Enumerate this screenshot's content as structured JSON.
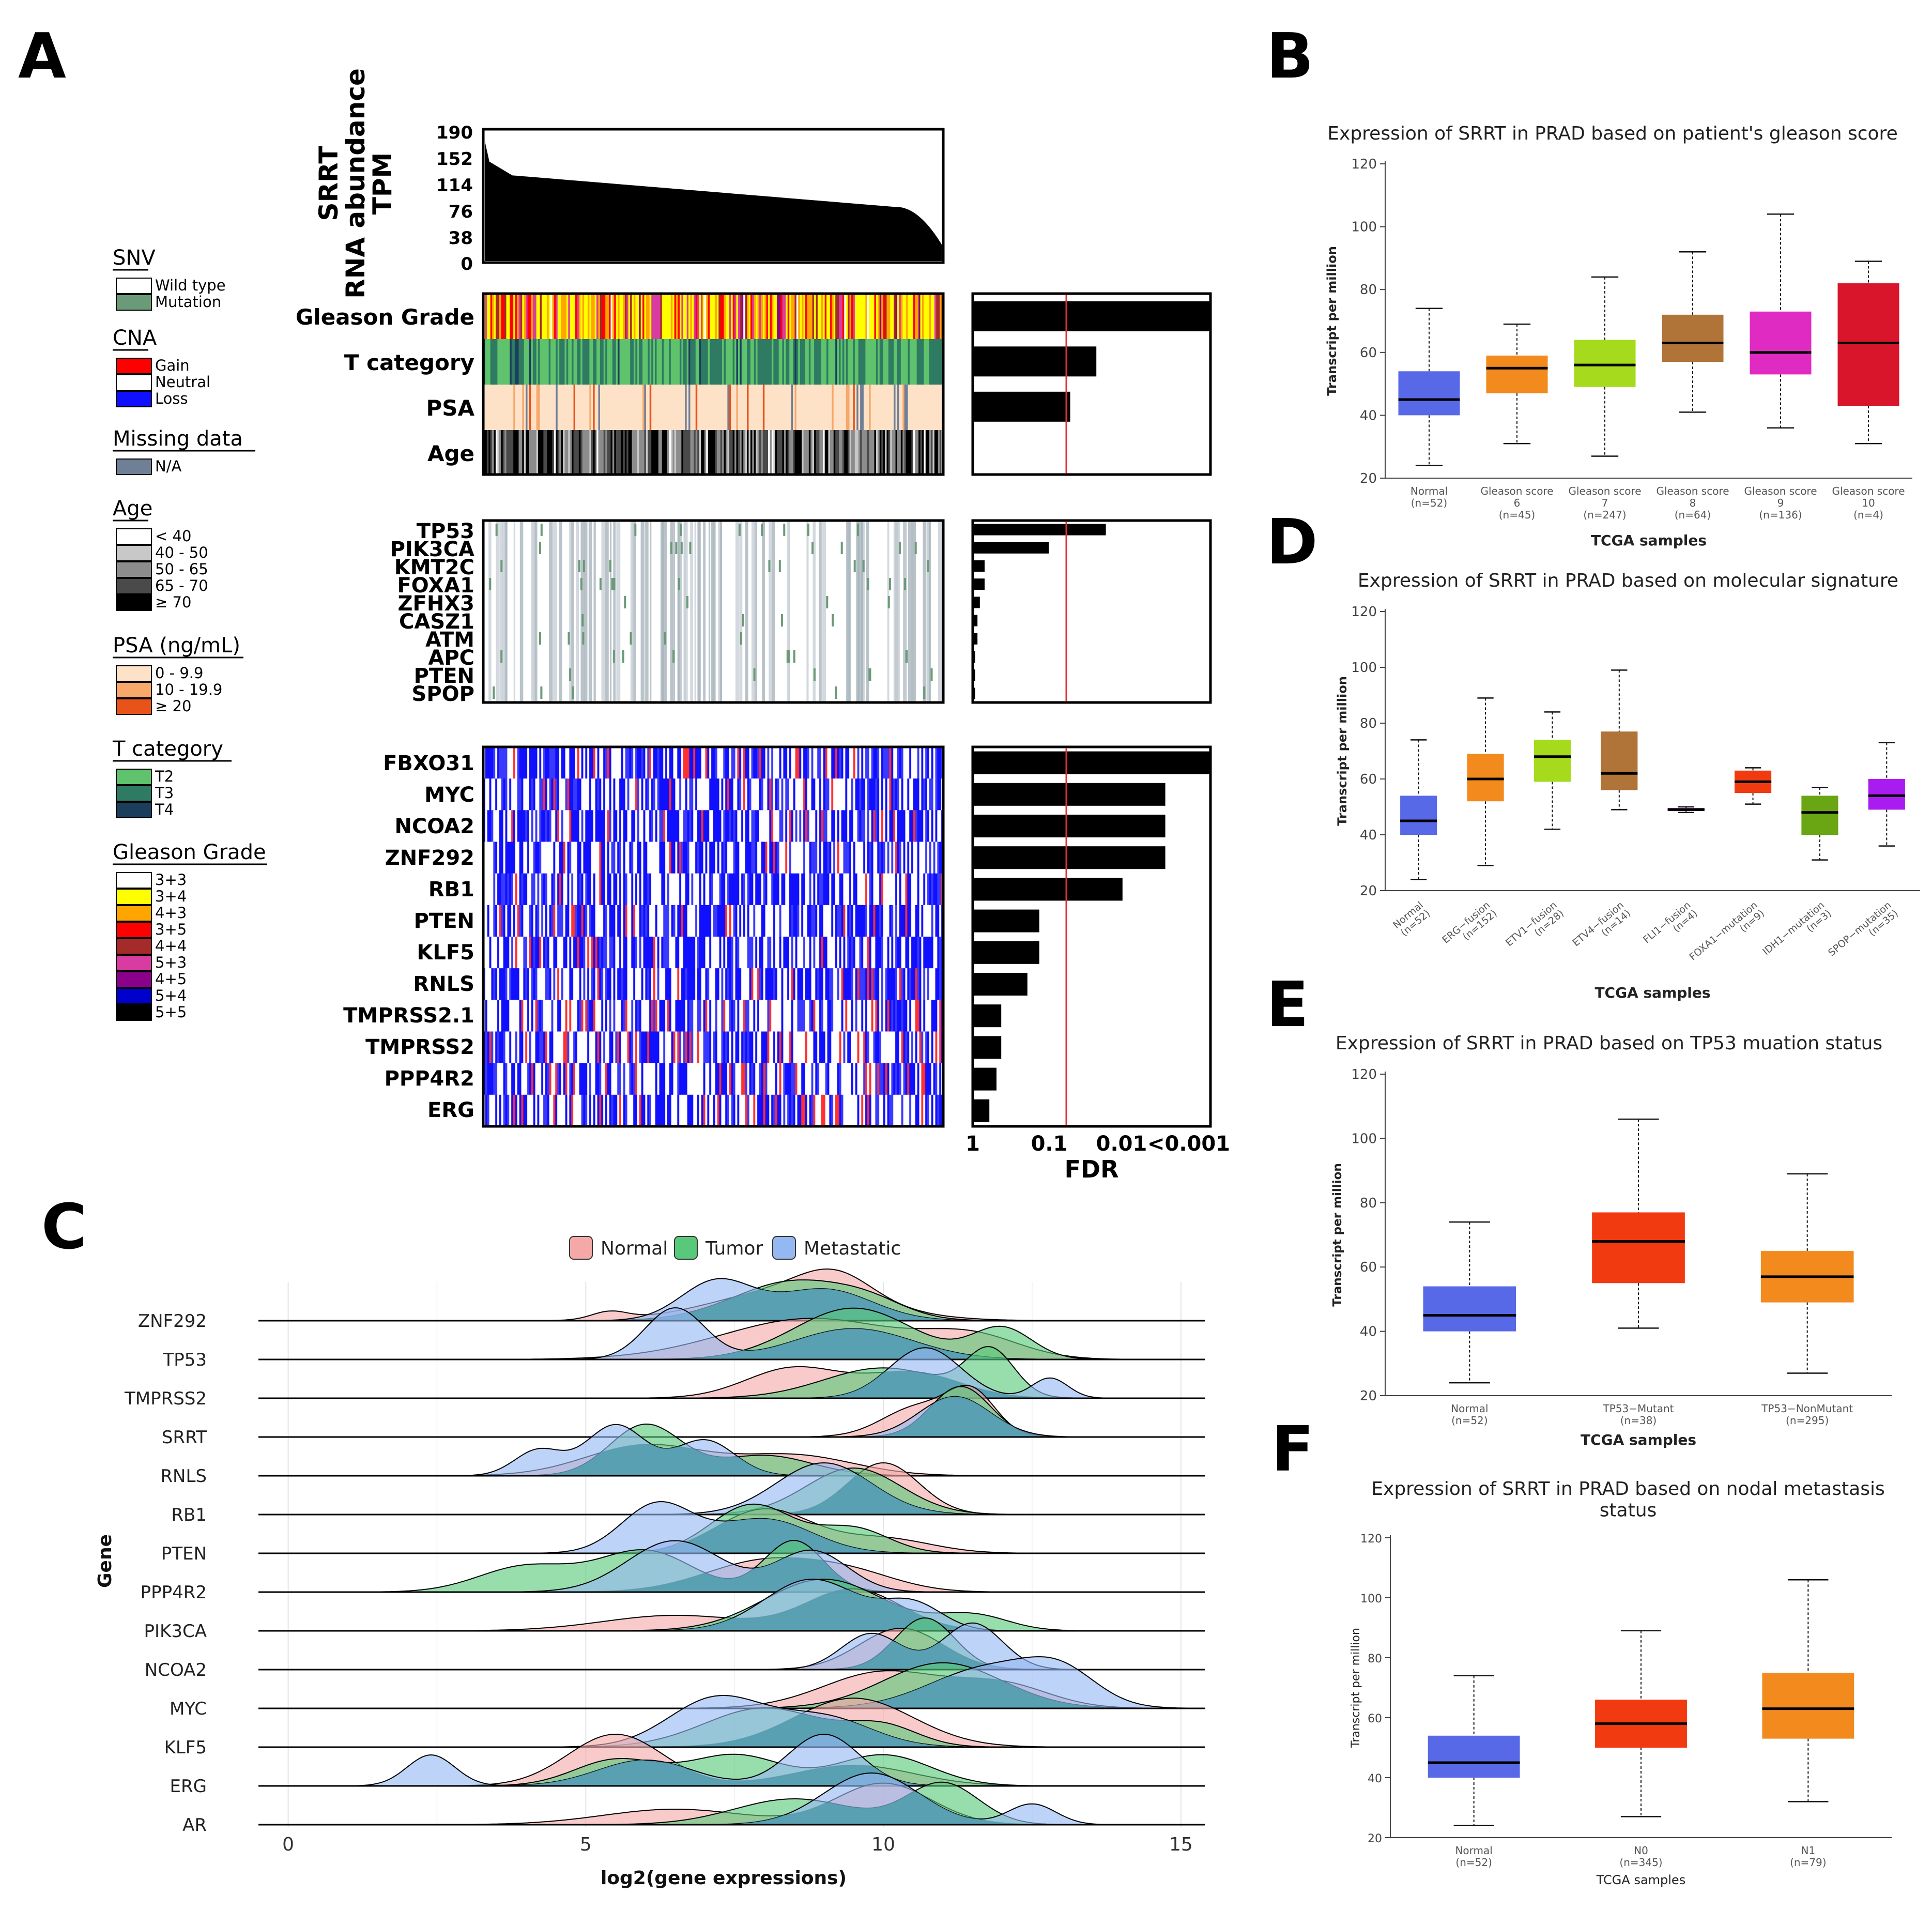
{
  "panel_letters": {
    "A": "A",
    "B": "B",
    "C": "C",
    "D": "D",
    "E": "E",
    "F": "F"
  },
  "colors": {
    "normal": "#5869e8",
    "orange": "#f28a1e",
    "lime": "#a5db1c",
    "brown": "#b07338",
    "magenta": "#e02bc2",
    "crimson": "#d8152b",
    "redorange": "#f23a10",
    "orchid": "#7d1f8f",
    "green": "#6aa514",
    "violet": "#a81cf0",
    "ridge_normal": "#f4a9a8",
    "ridge_tumor": "#58c97a",
    "ridge_meta": "#95b8f2",
    "ridge_overlap": "#4f9aae"
  },
  "panelA": {
    "ylabel_lines": [
      "SRRT",
      "RNA abundance",
      "TPM"
    ],
    "yticks": [
      "190",
      "152",
      "114",
      "76",
      "38",
      "0"
    ],
    "clinical_rows": [
      "Gleason Grade",
      "T category",
      "PSA",
      "Age"
    ],
    "clinical_fdr_bars": [
      1.0,
      0.52,
      0.41,
      0.0
    ],
    "mutation_rows": [
      "TP53",
      "PIK3CA",
      "KMT2C",
      "FOXA1",
      "ZFHX3",
      "CASZ1",
      "ATM",
      "APC",
      "PTEN",
      "SPOP"
    ],
    "mutation_fdr_bars": [
      0.56,
      0.32,
      0.05,
      0.05,
      0.03,
      0.02,
      0.02,
      0.01,
      0.01,
      0.01
    ],
    "cna_rows": [
      "FBXO31",
      "MYC",
      "NCOA2",
      "ZNF292",
      "RB1",
      "PTEN",
      "KLF5",
      "RNLS",
      "TMPRSS2.1",
      "TMPRSS2",
      "PPP4R2",
      "ERG"
    ],
    "cna_fdr_bars": [
      1.0,
      0.81,
      0.81,
      0.81,
      0.63,
      0.28,
      0.28,
      0.23,
      0.12,
      0.12,
      0.1,
      0.07
    ],
    "fdr_ticks": [
      "1",
      "0.1",
      "0.01",
      "<0.001"
    ],
    "fdr_label": "FDR",
    "legend": [
      {
        "title": "SNV",
        "items": [
          {
            "label": "Wild type",
            "color": "#ffffff"
          },
          {
            "label": "Mutation",
            "color": "#6b9a78"
          }
        ]
      },
      {
        "title": "CNA",
        "items": [
          {
            "label": "Gain",
            "color": "#ff0000"
          },
          {
            "label": "Neutral",
            "color": "#ffffff"
          },
          {
            "label": "Loss",
            "color": "#1010ff"
          }
        ]
      },
      {
        "title": "Missing data",
        "items": [
          {
            "label": "N/A",
            "color": "#6f7f96"
          }
        ]
      },
      {
        "title": "Age",
        "items": [
          {
            "label": "< 40",
            "color": "#ffffff"
          },
          {
            "label": "40 - 50",
            "color": "#c8c8c8"
          },
          {
            "label": "50 - 65",
            "color": "#8c8c8c"
          },
          {
            "label": "65 - 70",
            "color": "#4a4a4a"
          },
          {
            "label": "≥ 70",
            "color": "#000000"
          }
        ]
      },
      {
        "title": "PSA (ng/mL)",
        "items": [
          {
            "label": "0 - 9.9",
            "color": "#fde2c8"
          },
          {
            "label": "10 - 19.9",
            "color": "#f7a86a"
          },
          {
            "label": "≥ 20",
            "color": "#e8531a"
          }
        ]
      },
      {
        "title": "T category",
        "items": [
          {
            "label": "T2",
            "color": "#5fc26c"
          },
          {
            "label": "T3",
            "color": "#2e7a62"
          },
          {
            "label": "T4",
            "color": "#1a3e5c"
          }
        ]
      },
      {
        "title": "Gleason Grade",
        "items": [
          {
            "label": "3+3",
            "color": "#ffffff"
          },
          {
            "label": "3+4",
            "color": "#ffff00"
          },
          {
            "label": "4+3",
            "color": "#ffa500"
          },
          {
            "label": "3+5",
            "color": "#ff0000"
          },
          {
            "label": "4+4",
            "color": "#a52a2a"
          },
          {
            "label": "5+3",
            "color": "#d93ca0"
          },
          {
            "label": "4+5",
            "color": "#8b008b"
          },
          {
            "label": "5+4",
            "color": "#0000cd"
          },
          {
            "label": "5+5",
            "color": "#000000"
          }
        ]
      }
    ]
  },
  "chart_data": [
    {
      "id": "B",
      "type": "box",
      "title": "Expression of SRRT in PRAD based on patient's gleason score",
      "xlabel": "TCGA samples",
      "ylabel": "Transcript per million",
      "ylim": [
        20,
        120
      ],
      "yticks": [
        20,
        40,
        60,
        80,
        100,
        120
      ],
      "groups": [
        {
          "name": "Normal",
          "n": "(n=52)",
          "min": 24,
          "q1": 40,
          "median": 45,
          "q3": 54,
          "max": 74,
          "color": "#5869e8"
        },
        {
          "name": "Gleason score 6",
          "n": "(n=45)",
          "min": 31,
          "q1": 47,
          "median": 55,
          "q3": 59,
          "max": 69,
          "color": "#f28a1e"
        },
        {
          "name": "Gleason score 7",
          "n": "(n=247)",
          "min": 27,
          "q1": 49,
          "median": 56,
          "q3": 64,
          "max": 84,
          "color": "#a5db1c"
        },
        {
          "name": "Gleason score 8",
          "n": "(n=64)",
          "min": 41,
          "q1": 57,
          "median": 63,
          "q3": 72,
          "max": 92,
          "color": "#b07338"
        },
        {
          "name": "Gleason score 9",
          "n": "(n=136)",
          "min": 36,
          "q1": 53,
          "median": 60,
          "q3": 73,
          "max": 104,
          "color": "#e02bc2"
        },
        {
          "name": "Gleason score 10",
          "n": "(n=4)",
          "min": 31,
          "q1": 43,
          "median": 63,
          "q3": 82,
          "max": 89,
          "color": "#d8152b"
        }
      ]
    },
    {
      "id": "D",
      "type": "box",
      "title": "Expression of SRRT in PRAD based on molecular signature",
      "xlabel": "TCGA samples",
      "ylabel": "Transcript per million",
      "ylim": [
        20,
        120
      ],
      "yticks": [
        20,
        40,
        60,
        80,
        100,
        120
      ],
      "groups": [
        {
          "name": "Normal",
          "n": "(n=52)",
          "min": 24,
          "q1": 40,
          "median": 45,
          "q3": 54,
          "max": 74,
          "color": "#5869e8"
        },
        {
          "name": "ERG−fusion",
          "n": "(n=152)",
          "min": 29,
          "q1": 52,
          "median": 60,
          "q3": 69,
          "max": 89,
          "color": "#f28a1e"
        },
        {
          "name": "ETV1−fusion",
          "n": "(n=28)",
          "min": 42,
          "q1": 59,
          "median": 68,
          "q3": 74,
          "max": 84,
          "color": "#a5db1c"
        },
        {
          "name": "ETV4−fusion",
          "n": "(n=14)",
          "min": 49,
          "q1": 56,
          "median": 62,
          "q3": 77,
          "max": 99,
          "color": "#b07338"
        },
        {
          "name": "FLI1−fusion",
          "n": "(n=4)",
          "min": 48,
          "q1": 48.6,
          "median": 49,
          "q3": 49.6,
          "max": 50,
          "color": "#7d1f8f"
        },
        {
          "name": "FOXA1−mutation",
          "n": "(n=9)",
          "min": 51,
          "q1": 55,
          "median": 59,
          "q3": 63,
          "max": 64,
          "color": "#f23a10"
        },
        {
          "name": "IDH1−mutation",
          "n": "(n=3)",
          "min": 31,
          "q1": 40,
          "median": 48,
          "q3": 54,
          "max": 57,
          "color": "#6aa514"
        },
        {
          "name": "SPOP−mutation",
          "n": "(n=35)",
          "min": 36,
          "q1": 49,
          "median": 54,
          "q3": 60,
          "max": 73,
          "color": "#a81cf0"
        }
      ]
    },
    {
      "id": "E",
      "type": "box",
      "title": "Expression of SRRT in PRAD based on TP53 muation status",
      "xlabel": "TCGA samples",
      "ylabel": "Transcript per million",
      "ylim": [
        20,
        120
      ],
      "yticks": [
        20,
        40,
        60,
        80,
        100,
        120
      ],
      "groups": [
        {
          "name": "Normal",
          "n": "(n=52)",
          "min": 24,
          "q1": 40,
          "median": 45,
          "q3": 54,
          "max": 74,
          "color": "#5869e8"
        },
        {
          "name": "TP53−Mutant",
          "n": "(n=38)",
          "min": 41,
          "q1": 55,
          "median": 68,
          "q3": 77,
          "max": 106,
          "color": "#f23a10"
        },
        {
          "name": "TP53−NonMutant",
          "n": "(n=295)",
          "min": 27,
          "q1": 49,
          "median": 57,
          "q3": 65,
          "max": 89,
          "color": "#f28a1e"
        }
      ]
    },
    {
      "id": "F",
      "type": "box",
      "title_lines": [
        "Expression of SRRT in PRAD based on nodal metastasis",
        "status"
      ],
      "xlabel": "TCGA samples",
      "ylabel": "Transcript per million",
      "ylim": [
        20,
        120
      ],
      "yticks": [
        20,
        40,
        60,
        80,
        100,
        120
      ],
      "groups": [
        {
          "name": "Normal",
          "n": "(n=52)",
          "min": 24,
          "q1": 40,
          "median": 45,
          "q3": 54,
          "max": 74,
          "color": "#5869e8"
        },
        {
          "name": "N0",
          "n": "(n=345)",
          "min": 27,
          "q1": 50,
          "median": 58,
          "q3": 66,
          "max": 89,
          "color": "#f23a10"
        },
        {
          "name": "N1",
          "n": "(n=79)",
          "min": 32,
          "q1": 53,
          "median": 63,
          "q3": 75,
          "max": 106,
          "color": "#f28a1e"
        }
      ]
    },
    {
      "id": "C",
      "type": "ridgeline",
      "xlabel": "log2(gene expressions)",
      "ylabel": "Gene",
      "xlim": [
        -0.5,
        16
      ],
      "xticks": [
        0,
        5,
        10,
        15
      ],
      "legend": [
        "Normal",
        "Tumor",
        "Metastatic"
      ],
      "genes": [
        {
          "name": "ZNF292",
          "normal": [
            [
              5.4,
              0.3,
              0.2
            ],
            [
              8.5,
              1.3,
              0.8
            ],
            [
              9.2,
              0.6,
              0.6
            ]
          ],
          "tumor": [
            [
              8.5,
              1.0,
              1.0
            ],
            [
              9.8,
              0.6,
              0.3
            ]
          ],
          "meta": [
            [
              7.2,
              0.6,
              1.0
            ],
            [
              9,
              0.8,
              0.8
            ]
          ]
        },
        {
          "name": "TP53",
          "normal": [
            [
              8.8,
              1.5,
              0.8
            ],
            [
              11.5,
              0.8,
              0.4
            ]
          ],
          "tumor": [
            [
              9.5,
              1.0,
              1.0
            ],
            [
              12,
              0.5,
              0.6
            ]
          ],
          "meta": [
            [
              6.5,
              0.5,
              1.0
            ],
            [
              9.5,
              1.0,
              0.6
            ]
          ]
        },
        {
          "name": "TMPRSS2",
          "normal": [
            [
              8.5,
              0.8,
              0.6
            ],
            [
              10.5,
              0.8,
              0.5
            ]
          ],
          "tumor": [
            [
              10,
              1.0,
              0.6
            ],
            [
              11.8,
              0.4,
              0.9
            ]
          ],
          "meta": [
            [
              10.7,
              0.6,
              1.0
            ],
            [
              12.8,
              0.3,
              0.4
            ]
          ]
        },
        {
          "name": "SRRT",
          "normal": [
            [
              10.6,
              0.6,
              0.6
            ],
            [
              11.5,
              0.4,
              0.8
            ]
          ],
          "tumor": [
            [
              11.3,
              0.5,
              1.0
            ]
          ],
          "meta": [
            [
              11.2,
              0.6,
              0.8
            ]
          ]
        },
        {
          "name": "RNLS",
          "normal": [
            [
              6,
              1.0,
              0.6
            ],
            [
              8.5,
              1.0,
              0.4
            ]
          ],
          "tumor": [
            [
              6,
              0.6,
              1.0
            ],
            [
              8,
              0.8,
              0.4
            ]
          ],
          "meta": [
            [
              4.2,
              0.4,
              0.5
            ],
            [
              5.5,
              0.5,
              1.0
            ],
            [
              7,
              0.5,
              0.7
            ]
          ]
        },
        {
          "name": "RB1",
          "normal": [
            [
              10,
              0.6,
              1.0
            ]
          ],
          "tumor": [
            [
              9.5,
              0.8,
              0.9
            ]
          ],
          "meta": [
            [
              9,
              0.8,
              1.0
            ]
          ]
        },
        {
          "name": "PTEN",
          "normal": [
            [
              8,
              0.8,
              0.9
            ],
            [
              10,
              0.8,
              0.3
            ]
          ],
          "tumor": [
            [
              7.8,
              0.7,
              1.0
            ],
            [
              9.5,
              0.6,
              0.5
            ]
          ],
          "meta": [
            [
              6.2,
              0.6,
              1.0
            ],
            [
              8,
              0.8,
              0.7
            ]
          ]
        },
        {
          "name": "PPP4R2",
          "normal": [
            [
              8,
              1.0,
              0.6
            ],
            [
              9.5,
              0.8,
              0.3
            ]
          ],
          "tumor": [
            [
              4,
              0.8,
              0.5
            ],
            [
              6,
              0.8,
              0.8
            ],
            [
              8.5,
              0.5,
              1.0
            ]
          ],
          "meta": [
            [
              6.5,
              0.8,
              1.0
            ],
            [
              8.8,
              0.6,
              0.8
            ]
          ]
        },
        {
          "name": "PIK3CA",
          "normal": [
            [
              6.5,
              1.2,
              0.3
            ],
            [
              9.5,
              0.8,
              0.8
            ]
          ],
          "tumor": [
            [
              9,
              1.0,
              1.0
            ],
            [
              11.5,
              0.6,
              0.3
            ]
          ],
          "meta": [
            [
              8.8,
              0.8,
              1.0
            ],
            [
              10.5,
              0.5,
              0.5
            ]
          ]
        },
        {
          "name": "NCOA2",
          "normal": [
            [
              10.3,
              0.7,
              0.8
            ]
          ],
          "tumor": [
            [
              10.7,
              0.5,
              1.0
            ]
          ],
          "meta": [
            [
              9.8,
              0.5,
              0.7
            ],
            [
              11.5,
              0.5,
              0.9
            ]
          ]
        },
        {
          "name": "MYC",
          "normal": [
            [
              10,
              1.0,
              0.8
            ],
            [
              12,
              0.8,
              0.5
            ]
          ],
          "tumor": [
            [
              11,
              1.0,
              1.0
            ]
          ],
          "meta": [
            [
              11.8,
              1.0,
              0.9
            ],
            [
              13,
              0.6,
              0.6
            ]
          ]
        },
        {
          "name": "KLF5",
          "normal": [
            [
              9.5,
              1.0,
              1.0
            ]
          ],
          "tumor": [
            [
              8,
              1.0,
              0.8
            ],
            [
              10,
              0.6,
              0.4
            ]
          ],
          "meta": [
            [
              7.2,
              0.8,
              1.0
            ],
            [
              9,
              0.8,
              0.6
            ]
          ]
        },
        {
          "name": "ERG",
          "normal": [
            [
              5.5,
              0.8,
              1.0
            ],
            [
              9.5,
              1.0,
              0.4
            ]
          ],
          "tumor": [
            [
              5.5,
              0.7,
              0.5
            ],
            [
              7.5,
              0.8,
              0.6
            ],
            [
              10,
              0.8,
              0.6
            ]
          ],
          "meta": [
            [
              2.4,
              0.4,
              0.6
            ],
            [
              6,
              0.8,
              0.5
            ],
            [
              9,
              0.6,
              1.0
            ]
          ]
        },
        {
          "name": "AR",
          "normal": [
            [
              6.5,
              1.2,
              0.3
            ],
            [
              10,
              0.8,
              0.8
            ]
          ],
          "tumor": [
            [
              8.5,
              1.0,
              0.5
            ],
            [
              11,
              0.6,
              0.8
            ]
          ],
          "meta": [
            [
              9.8,
              0.8,
              1.0
            ],
            [
              12.5,
              0.4,
              0.4
            ]
          ]
        }
      ]
    }
  ]
}
